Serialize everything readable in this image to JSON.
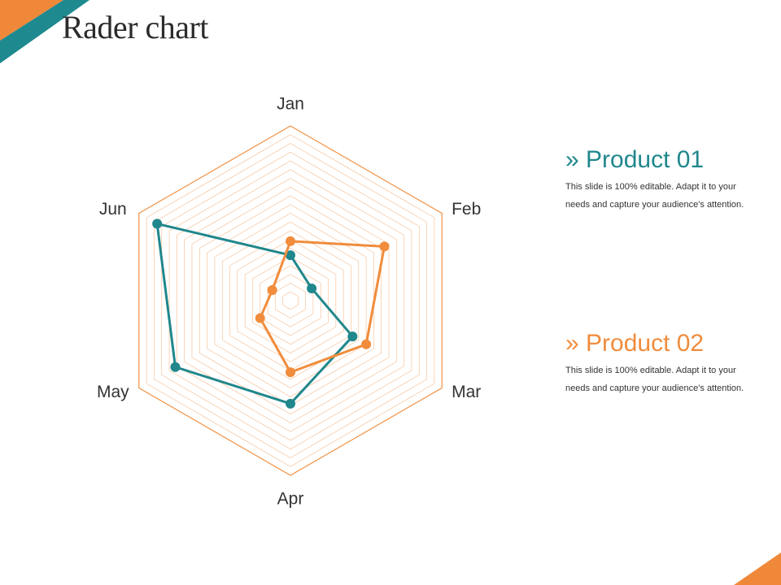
{
  "slide": {
    "title": "Rader chart",
    "accent_colors": {
      "orange": "#f0883a",
      "teal": "#1e8a8f"
    }
  },
  "legend": [
    {
      "title": "» Product 01",
      "color": "#20878c",
      "description": "This slide is 100% editable. Adapt it to your needs and capture your audience's attention."
    },
    {
      "title": "» Product 02",
      "color": "#f08c3c",
      "description": "This slide is 100% editable. Adapt it to your needs and capture your audience's attention."
    }
  ],
  "chart_data": {
    "type": "radar",
    "title": "",
    "categories": [
      "Jan",
      "Feb",
      "Mar",
      "Apr",
      "May",
      "Jun"
    ],
    "rmax": 100,
    "grid_levels": 20,
    "grid": true,
    "grid_color": "#f08c3c",
    "legend_position": "right",
    "series": [
      {
        "name": "Product 01",
        "color": "#20878c",
        "values": [
          26,
          14,
          41,
          59,
          76,
          88
        ]
      },
      {
        "name": "Product 02",
        "color": "#f08c3c",
        "values": [
          34,
          62,
          50,
          41,
          20,
          12
        ]
      }
    ]
  }
}
